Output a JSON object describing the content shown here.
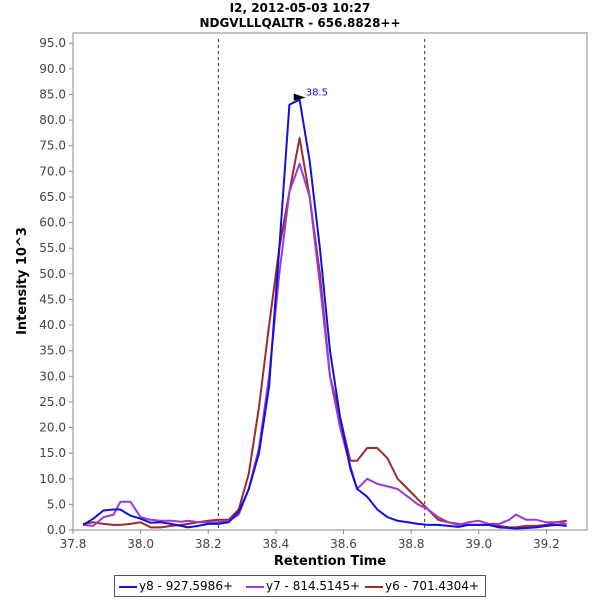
{
  "chart_data": {
    "type": "line",
    "title": "I2, 2012-05-03 10:27",
    "subtitle": "NDGVLLLQALTR - 656.8828++",
    "xlabel": "Retention Time",
    "ylabel": "Intensity 10^3",
    "xlim": [
      37.8,
      39.32
    ],
    "ylim": [
      0,
      97
    ],
    "x_ticks": [
      "37.8",
      "38.0",
      "38.2",
      "38.4",
      "38.6",
      "38.8",
      "39.0",
      "39.2"
    ],
    "x_tick_values": [
      37.8,
      38.0,
      38.2,
      38.4,
      38.6,
      38.8,
      39.0,
      39.2
    ],
    "y_ticks": [
      "0.0",
      "5.0",
      "10.0",
      "15.0",
      "20.0",
      "25.0",
      "30.0",
      "35.0",
      "40.0",
      "45.0",
      "50.0",
      "55.0",
      "60.0",
      "65.0",
      "70.0",
      "75.0",
      "80.0",
      "85.0",
      "90.0",
      "95.0"
    ],
    "y_tick_values": [
      0,
      5,
      10,
      15,
      20,
      25,
      30,
      35,
      40,
      45,
      50,
      55,
      60,
      65,
      70,
      75,
      80,
      85,
      90,
      95
    ],
    "boundaries": [
      38.23,
      38.84
    ],
    "peak_annotation": {
      "label": "38.5",
      "x": 38.5,
      "y": 84.0
    },
    "series": [
      {
        "name": "y8 - 927.5986+",
        "color": "#1010e0",
        "x": [
          37.83,
          37.86,
          37.89,
          37.92,
          37.94,
          37.97,
          38.0,
          38.03,
          38.06,
          38.09,
          38.12,
          38.14,
          38.17,
          38.2,
          38.23,
          38.26,
          38.29,
          38.32,
          38.35,
          38.38,
          38.41,
          38.44,
          38.47,
          38.5,
          38.53,
          38.56,
          38.59,
          38.62,
          38.64,
          38.67,
          38.7,
          38.73,
          38.76,
          38.79,
          38.82,
          38.85,
          38.88,
          38.91,
          38.94,
          38.97,
          39.0,
          39.03,
          39.06,
          39.09,
          39.11,
          39.14,
          39.17,
          39.2,
          39.23,
          39.26
        ],
        "y": [
          1.0,
          2.2,
          3.8,
          4.0,
          4.0,
          2.8,
          2.2,
          1.4,
          1.5,
          1.2,
          0.8,
          0.5,
          0.8,
          1.2,
          1.2,
          1.5,
          3.5,
          8.0,
          15.0,
          28.0,
          55.0,
          83.0,
          84.0,
          72.0,
          55.0,
          35.0,
          22.0,
          12.0,
          8.0,
          6.5,
          4.0,
          2.5,
          1.8,
          1.5,
          1.2,
          1.0,
          1.0,
          0.8,
          0.6,
          1.0,
          1.0,
          1.0,
          0.5,
          0.4,
          0.3,
          0.4,
          0.5,
          0.8,
          1.0,
          0.8
        ]
      },
      {
        "name": "y7 - 814.5145+",
        "color": "#9a3ad8",
        "x": [
          37.83,
          37.86,
          37.89,
          37.92,
          37.94,
          37.97,
          38.0,
          38.03,
          38.06,
          38.09,
          38.12,
          38.14,
          38.17,
          38.2,
          38.23,
          38.26,
          38.29,
          38.32,
          38.35,
          38.38,
          38.41,
          38.44,
          38.47,
          38.5,
          38.53,
          38.56,
          38.59,
          38.62,
          38.64,
          38.67,
          38.7,
          38.73,
          38.76,
          38.79,
          38.82,
          38.85,
          38.88,
          38.91,
          38.94,
          38.97,
          39.0,
          39.03,
          39.06,
          39.09,
          39.11,
          39.14,
          39.17,
          39.2,
          39.23,
          39.26
        ],
        "y": [
          1.0,
          0.8,
          2.5,
          3.0,
          5.5,
          5.5,
          2.5,
          2.0,
          1.8,
          1.8,
          1.6,
          1.8,
          1.5,
          1.5,
          1.5,
          1.8,
          3.0,
          8.0,
          16.0,
          30.0,
          50.0,
          66.0,
          71.5,
          65.0,
          48.0,
          30.0,
          20.0,
          12.5,
          8.0,
          10.0,
          9.0,
          8.5,
          8.0,
          6.5,
          5.0,
          4.0,
          2.5,
          1.5,
          1.0,
          1.5,
          1.8,
          1.2,
          1.2,
          2.0,
          3.0,
          2.0,
          2.0,
          1.5,
          1.5,
          1.2
        ]
      },
      {
        "name": "y6 - 701.4304+",
        "color": "#a02a2a",
        "x": [
          37.83,
          37.86,
          37.89,
          37.92,
          37.94,
          37.97,
          38.0,
          38.03,
          38.06,
          38.09,
          38.12,
          38.14,
          38.17,
          38.2,
          38.23,
          38.26,
          38.29,
          38.32,
          38.35,
          38.38,
          38.41,
          38.44,
          38.47,
          38.5,
          38.53,
          38.56,
          38.59,
          38.62,
          38.64,
          38.67,
          38.7,
          38.73,
          38.76,
          38.79,
          38.82,
          38.85,
          38.88,
          38.91,
          38.94,
          38.97,
          39.0,
          39.03,
          39.06,
          39.09,
          39.11,
          39.14,
          39.17,
          39.2,
          39.23,
          39.26
        ],
        "y": [
          1.2,
          1.5,
          1.2,
          1.0,
          1.0,
          1.2,
          1.5,
          0.5,
          0.5,
          0.8,
          1.0,
          1.2,
          1.5,
          1.8,
          2.0,
          2.0,
          4.0,
          11.0,
          24.0,
          40.0,
          55.0,
          66.0,
          76.5,
          65.0,
          50.0,
          30.0,
          22.0,
          13.5,
          13.5,
          16.0,
          16.0,
          14.0,
          10.0,
          8.0,
          6.0,
          4.0,
          2.0,
          1.5,
          1.2,
          1.0,
          1.0,
          1.0,
          0.8,
          0.5,
          0.5,
          0.8,
          0.8,
          1.0,
          1.5,
          1.8
        ]
      }
    ]
  }
}
